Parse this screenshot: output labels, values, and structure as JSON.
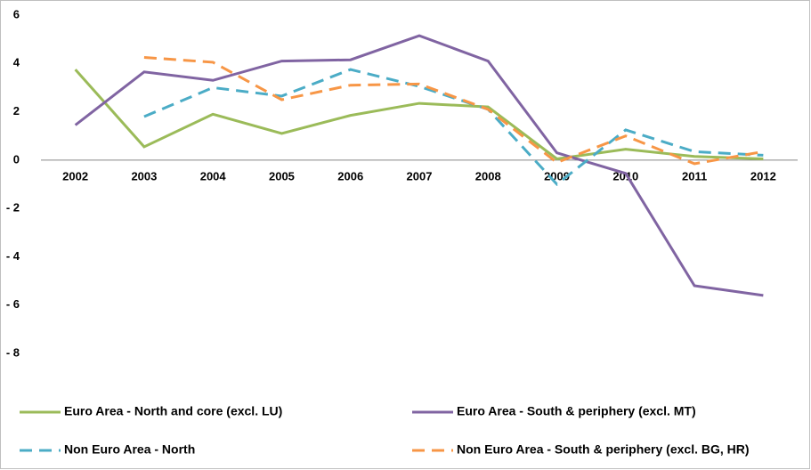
{
  "chart_data": {
    "type": "line",
    "categories": [
      "2002",
      "2003",
      "2004",
      "2005",
      "2006",
      "2007",
      "2008",
      "2009",
      "2010",
      "2011",
      "2012"
    ],
    "series": [
      {
        "name": "Euro Area - North and core (excl. LU)",
        "color": "#9bbb59",
        "style": "solid",
        "values": [
          3.75,
          0.55,
          1.9,
          1.1,
          1.85,
          2.35,
          2.2,
          0.05,
          0.45,
          0.15,
          0.05
        ]
      },
      {
        "name": "Euro Area - South & periphery (excl. MT)",
        "color": "#8064a2",
        "style": "solid",
        "values": [
          1.45,
          3.65,
          3.3,
          4.1,
          4.15,
          5.15,
          4.1,
          0.3,
          -0.55,
          -5.2,
          -5.6
        ]
      },
      {
        "name": "Non Euro Area - North",
        "color": "#4bacc6",
        "style": "dashed",
        "values": [
          null,
          1.8,
          3.0,
          2.65,
          3.75,
          3.05,
          2.1,
          -1.0,
          1.25,
          0.35,
          0.2
        ]
      },
      {
        "name": "Non Euro Area - South & periphery (excl. BG, HR)",
        "color": "#f79646",
        "style": "dashed",
        "values": [
          null,
          4.25,
          4.05,
          2.5,
          3.1,
          3.15,
          2.1,
          -0.1,
          1.0,
          -0.15,
          0.35
        ]
      }
    ],
    "ylim": [
      -8,
      6
    ],
    "yticks": [
      {
        "value": -8,
        "label": "- 8"
      },
      {
        "value": -6,
        "label": "- 6"
      },
      {
        "value": -4,
        "label": "- 4"
      },
      {
        "value": -2,
        "label": "- 2"
      },
      0,
      2,
      4,
      6
    ],
    "grid": false,
    "legend": "bottom"
  }
}
